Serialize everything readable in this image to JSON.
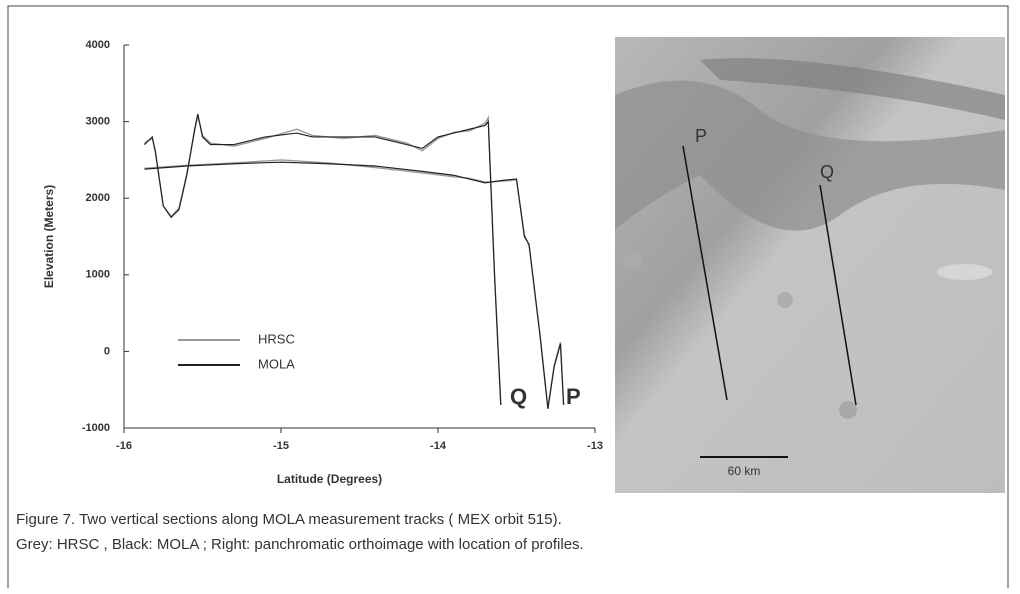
{
  "chart_data": {
    "type": "line",
    "xlabel": "Latitude (Degrees)",
    "ylabel": "Elevation (Meters)",
    "xlim": [
      -16,
      -13
    ],
    "xticks": [
      -16,
      -15,
      -14,
      -13
    ],
    "ylim": [
      -1000,
      4000
    ],
    "yticks": [
      -1000,
      0,
      1000,
      2000,
      3000,
      4000
    ],
    "grid": false,
    "series": [
      {
        "name": "HRSC",
        "color": "#9a9a9a",
        "x": [
          -15.87,
          -15.82,
          -15.8,
          -15.75,
          -15.7,
          -15.65,
          -15.6,
          -15.55,
          -15.53,
          -15.5,
          -15.45,
          -15.3,
          -15.1,
          -14.9,
          -14.8,
          -14.6,
          -14.4,
          -14.2,
          -14.1,
          -14.0,
          -13.9,
          -13.8,
          -13.7,
          -13.68,
          -13.64,
          -13.6,
          null,
          -15.87,
          -15.6,
          -15.3,
          -15.0,
          -14.7,
          -14.4,
          -14.1,
          -13.9,
          -13.8,
          -13.7,
          -13.6,
          -13.5,
          -13.45,
          -13.42,
          -13.35,
          -13.3,
          -13.26,
          -13.22,
          -13.2
        ],
        "values": [
          2720,
          2780,
          2620,
          1900,
          1760,
          1870,
          2320,
          2880,
          3080,
          2820,
          2720,
          2680,
          2780,
          2900,
          2820,
          2780,
          2820,
          2720,
          2620,
          2780,
          2860,
          2880,
          2980,
          3050,
          1000,
          -700,
          null,
          2390,
          2430,
          2460,
          2500,
          2460,
          2400,
          2330,
          2280,
          2260,
          2210,
          2220,
          2240,
          1520,
          1380,
          220,
          -740,
          -180,
          120,
          -700
        ]
      },
      {
        "name": "MOLA",
        "color": "#222222",
        "x": [
          -15.87,
          -15.82,
          -15.8,
          -15.75,
          -15.7,
          -15.65,
          -15.6,
          -15.55,
          -15.53,
          -15.5,
          -15.45,
          -15.3,
          -15.1,
          -14.9,
          -14.8,
          -14.6,
          -14.4,
          -14.2,
          -14.1,
          -14.0,
          -13.9,
          -13.8,
          -13.7,
          -13.68,
          -13.64,
          -13.6,
          null,
          -15.87,
          -15.6,
          -15.3,
          -15.0,
          -14.7,
          -14.4,
          -14.1,
          -13.9,
          -13.8,
          -13.7,
          -13.6,
          -13.5,
          -13.45,
          -13.42,
          -13.35,
          -13.3,
          -13.26,
          -13.22,
          -13.2
        ],
        "values": [
          2700,
          2800,
          2600,
          1900,
          1750,
          1850,
          2300,
          2900,
          3100,
          2800,
          2700,
          2700,
          2800,
          2850,
          2800,
          2800,
          2800,
          2700,
          2650,
          2800,
          2850,
          2900,
          2950,
          3000,
          1000,
          -700,
          null,
          2380,
          2420,
          2450,
          2470,
          2450,
          2420,
          2350,
          2300,
          2250,
          2200,
          2230,
          2250,
          1500,
          1400,
          200,
          -750,
          -200,
          100,
          -700
        ]
      }
    ],
    "annotations": [
      "Q",
      "P"
    ]
  },
  "image": {
    "labels": [
      "P",
      "Q"
    ],
    "scale": "60 km"
  },
  "caption": {
    "line1": "Figure 7.   Two vertical sections along  MOLA  measurement tracks ( MEX  orbit 515).",
    "line2": "Grey:  HRSC , Black:  MOLA ; Right: panchromatic orthoimage with location of profiles."
  }
}
